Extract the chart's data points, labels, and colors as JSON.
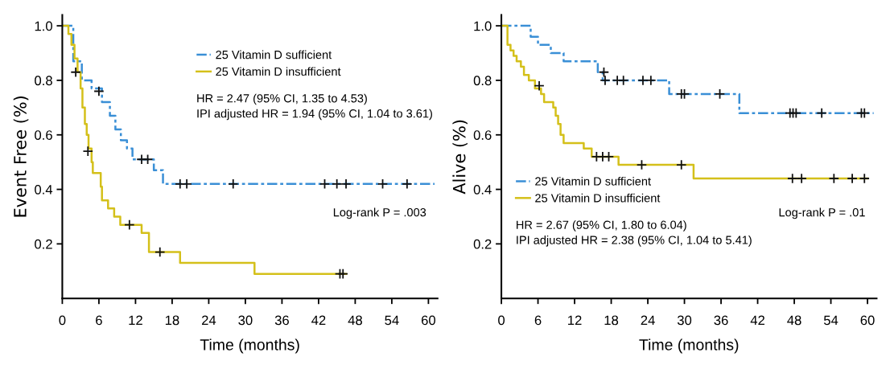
{
  "chart_data": [
    {
      "type": "step",
      "ylabel": "Event Free (%)",
      "xlabel": "Time (months)",
      "xlim": [
        0,
        61.5
      ],
      "ylim": [
        0,
        1.04
      ],
      "xticks": [
        0,
        6,
        12,
        18,
        24,
        30,
        36,
        42,
        48,
        54,
        60
      ],
      "yticks": [
        {
          "value": 0.2,
          "label": "0.2"
        },
        {
          "value": 0.4,
          "label": "0.4"
        },
        {
          "value": 0.6,
          "label": "0.6"
        },
        {
          "value": 0.8,
          "label": "0.8"
        },
        {
          "value": 1.0,
          "label": "1.0"
        }
      ],
      "grid": false,
      "legend": "top",
      "marker": "none",
      "annotations": [
        "HR = 2.47 (95% CI, 1.35 to 4.53)\nIPI adjusted HR = 1.94 (95% CI, 1.04 to 3.61)",
        "Log-rank P = .003"
      ],
      "series": [
        {
          "name": "25 Vitamin D sufficient",
          "color": "#3a8fd6",
          "line_style": "dashed",
          "x": [
            0,
            1.8,
            3.2,
            4.8,
            6.5,
            7.8,
            8.7,
            9.6,
            10.6,
            11.5,
            15.0,
            16.5,
            61
          ],
          "values": [
            1.0,
            0.87,
            0.8,
            0.77,
            0.72,
            0.67,
            0.62,
            0.58,
            0.55,
            0.51,
            0.47,
            0.42,
            0.42
          ]
        },
        {
          "name": "25 Vitamin D insufficient",
          "color": "#d4c01a",
          "line_style": "solid",
          "x": [
            0,
            1,
            1.5,
            2,
            2.5,
            3,
            3.3,
            3.7,
            4.0,
            4.3,
            4.8,
            5.0,
            6.3,
            6.5,
            7.5,
            8.5,
            9.5,
            13.0,
            14.2,
            19.3,
            31.5,
            46.5
          ],
          "values": [
            1.0,
            0.97,
            0.93,
            0.88,
            0.83,
            0.77,
            0.7,
            0.64,
            0.6,
            0.55,
            0.5,
            0.46,
            0.41,
            0.36,
            0.33,
            0.3,
            0.27,
            0.24,
            0.17,
            0.13,
            0.09,
            0.09
          ]
        },
        {
          "type": "scatter",
          "color": "#111111",
          "marker": "cross",
          "x": [
            6,
            13,
            14,
            19.3,
            20.4,
            28,
            43,
            45,
            46.5,
            52.5,
            56.5
          ],
          "values": [
            0.76,
            0.51,
            0.51,
            0.42,
            0.42,
            0.42,
            0.42,
            0.42,
            0.42,
            0.42,
            0.42
          ]
        },
        {
          "type": "scatter",
          "color": "#111111",
          "marker": "cross",
          "x": [
            2.2,
            4.2,
            11,
            16,
            45.5,
            46
          ],
          "values": [
            0.83,
            0.54,
            0.27,
            0.17,
            0.09,
            0.09
          ]
        }
      ]
    },
    {
      "type": "step",
      "ylabel": "Alive (%)",
      "xlabel": "Time (months)",
      "xlim": [
        0,
        61.5
      ],
      "ylim": [
        0,
        1.04
      ],
      "xticks": [
        0,
        6,
        12,
        18,
        24,
        30,
        36,
        42,
        48,
        54,
        60
      ],
      "yticks": [
        {
          "value": 0.2,
          "label": "0.2"
        },
        {
          "value": 0.4,
          "label": "0.4"
        },
        {
          "value": 0.6,
          "label": "0.6"
        },
        {
          "value": 0.8,
          "label": "0.8"
        },
        {
          "value": 1.0,
          "label": "1.0"
        }
      ],
      "grid": false,
      "legend": "left",
      "marker": "none",
      "annotations": [
        "HR = 2.67 (95% CI, 1.80 to 6.04)\nIPI adjusted HR = 2.38 (95% CI, 1.04 to 5.41)",
        "Log-rank P = .01"
      ],
      "series": [
        {
          "name": "25 Vitamin D sufficient",
          "color": "#3a8fd6",
          "line_style": "dashed",
          "x": [
            0,
            4.8,
            6.0,
            8.1,
            10.2,
            15.8,
            16.6,
            27.5,
            39.0,
            61
          ],
          "values": [
            1.0,
            0.96,
            0.93,
            0.9,
            0.87,
            0.83,
            0.8,
            0.75,
            0.68,
            0.68
          ]
        },
        {
          "name": "25 Vitamin D insufficient",
          "color": "#d4c01a",
          "line_style": "solid",
          "x": [
            0,
            1.0,
            1.5,
            2.0,
            2.5,
            3.2,
            3.7,
            4.5,
            5.5,
            6.5,
            7.0,
            8.5,
            8.9,
            9.3,
            9.7,
            10.2,
            13.5,
            14.8,
            19.2,
            31.5,
            60
          ],
          "values": [
            1.0,
            0.93,
            0.91,
            0.89,
            0.87,
            0.85,
            0.82,
            0.8,
            0.77,
            0.75,
            0.72,
            0.7,
            0.67,
            0.64,
            0.6,
            0.57,
            0.55,
            0.52,
            0.49,
            0.44,
            0.44
          ]
        },
        {
          "type": "scatter",
          "color": "#111111",
          "marker": "cross",
          "x": [
            16.8,
            17,
            19,
            20,
            23.2,
            24.5,
            29.5,
            30,
            35.8,
            47.3,
            47.8,
            48.3,
            52.5,
            59,
            59.5
          ],
          "values": [
            0.83,
            0.8,
            0.8,
            0.8,
            0.8,
            0.8,
            0.75,
            0.75,
            0.75,
            0.68,
            0.68,
            0.68,
            0.68,
            0.68,
            0.68
          ]
        },
        {
          "type": "scatter",
          "color": "#111111",
          "marker": "cross",
          "x": [
            6.2,
            15.6,
            16.6,
            17.6,
            23,
            29.5,
            47.7,
            49.2,
            54.5,
            57.5,
            59.5
          ],
          "values": [
            0.78,
            0.52,
            0.52,
            0.52,
            0.49,
            0.49,
            0.44,
            0.44,
            0.44,
            0.44,
            0.44
          ]
        }
      ]
    }
  ]
}
